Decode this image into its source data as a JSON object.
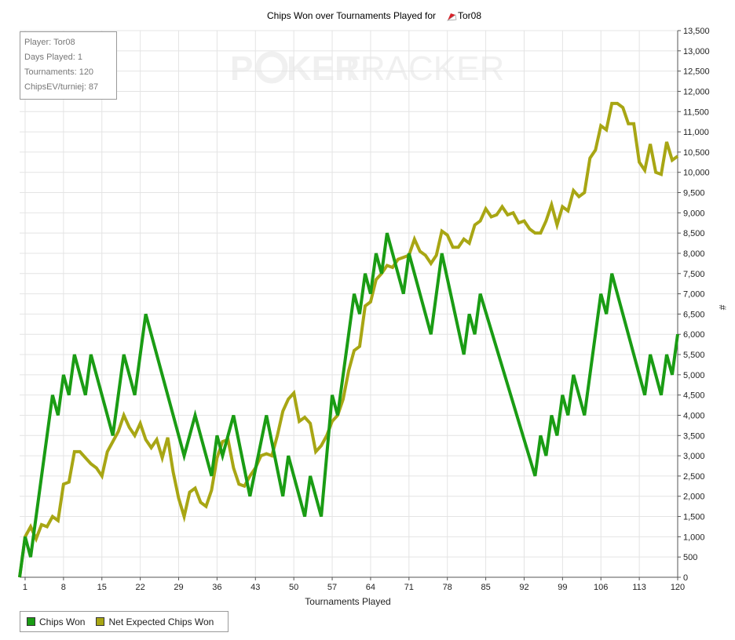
{
  "header": {
    "title_prefix": "Chips Won over Tournaments Played for",
    "player": "Tor08",
    "flag_icon": "pokerstars-icon"
  },
  "watermark": {
    "text_a": "P",
    "text_b": "KER",
    "text_c": "TRACKER"
  },
  "info": {
    "player_line": "Player: Tor08",
    "days_line": "Days Played: 1",
    "tournaments_line": "Tournaments: 120",
    "chipsev_line": "ChipsEV/turniej: 87"
  },
  "colors": {
    "chips_won": "#1a9c14",
    "net_expected": "#a8a614",
    "grid": "#e4e4e4"
  },
  "chart_data": {
    "type": "line",
    "xlabel": "Tournaments Played",
    "ylabel": "#",
    "xlim": [
      0,
      120
    ],
    "ylim": [
      0,
      13500
    ],
    "x_ticks": [
      1,
      8,
      15,
      22,
      29,
      36,
      43,
      50,
      57,
      64,
      71,
      78,
      85,
      92,
      99,
      106,
      113,
      120
    ],
    "y_ticks": [
      "0",
      "500",
      "1,000",
      "1,500",
      "2,000",
      "2,500",
      "3,000",
      "3,500",
      "4,000",
      "4,500",
      "5,000",
      "5,500",
      "6,000",
      "6,500",
      "7,000",
      "7,500",
      "8,000",
      "8,500",
      "9,000",
      "9,500",
      "10,000",
      "10,500",
      "11,000",
      "11,500",
      "12,000",
      "12,500",
      "13,000",
      "13,500"
    ],
    "y_tick_values": [
      0,
      500,
      1000,
      1500,
      2000,
      2500,
      3000,
      3500,
      4000,
      4500,
      5000,
      5500,
      6000,
      6500,
      7000,
      7500,
      8000,
      8500,
      9000,
      9500,
      10000,
      10500,
      11000,
      11500,
      12000,
      12500,
      13000,
      13500
    ],
    "grid": true,
    "legend_position": "bottom-left",
    "series": [
      {
        "name": "Chips Won",
        "x": [
          0,
          1,
          2,
          6,
          7,
          8,
          9,
          10,
          12,
          13,
          17,
          19,
          21,
          23,
          30,
          32,
          35,
          36,
          37,
          39,
          42,
          45,
          48,
          49,
          52,
          53,
          55,
          57,
          58,
          61,
          62,
          63,
          64,
          65,
          66,
          67,
          70,
          71,
          75,
          77,
          81,
          82,
          83,
          84,
          94,
          95,
          96,
          97,
          98,
          99,
          100,
          101,
          103,
          106,
          107,
          108,
          114,
          115,
          117,
          118,
          119,
          120
        ],
        "y": [
          0,
          1000,
          500,
          4500,
          4000,
          5000,
          4500,
          5500,
          4500,
          5500,
          3500,
          5500,
          4500,
          6500,
          3000,
          4000,
          2500,
          3500,
          3000,
          4000,
          2000,
          4000,
          2000,
          3000,
          1500,
          2500,
          1500,
          4500,
          4000,
          7000,
          6500,
          7500,
          7000,
          8000,
          7500,
          8500,
          7000,
          8000,
          6000,
          8000,
          5500,
          6500,
          6000,
          7000,
          2500,
          3500,
          3000,
          4000,
          3500,
          4500,
          4000,
          5000,
          4000,
          7000,
          6500,
          7500,
          4500,
          5500,
          4500,
          5500,
          5000,
          6000
        ]
      },
      {
        "name": "Net Expected Chips Won",
        "x": [
          0,
          1,
          2,
          3,
          4,
          5,
          6,
          7,
          8,
          9,
          10,
          11,
          12,
          13,
          14,
          15,
          16,
          17,
          18,
          19,
          20,
          21,
          22,
          23,
          24,
          25,
          26,
          27,
          28,
          29,
          30,
          31,
          32,
          33,
          34,
          35,
          36,
          37,
          38,
          39,
          40,
          41,
          42,
          43,
          44,
          45,
          46,
          47,
          48,
          49,
          50,
          51,
          52,
          53,
          54,
          55,
          56,
          57,
          58,
          59,
          60,
          61,
          62,
          63,
          64,
          65,
          66,
          67,
          68,
          69,
          70,
          71,
          72,
          73,
          74,
          75,
          76,
          77,
          78,
          79,
          80,
          81,
          82,
          83,
          84,
          85,
          86,
          87,
          88,
          89,
          90,
          91,
          92,
          93,
          94,
          95,
          96,
          97,
          98,
          99,
          100,
          101,
          102,
          103,
          104,
          105,
          106,
          107,
          108,
          109,
          110,
          111,
          112,
          113,
          114,
          115,
          116,
          117,
          118,
          119,
          120
        ],
        "y": [
          0,
          1000,
          1250,
          950,
          1300,
          1250,
          1500,
          1400,
          2300,
          2350,
          3100,
          3100,
          2950,
          2800,
          2700,
          2500,
          3100,
          3350,
          3600,
          4000,
          3700,
          3500,
          3800,
          3400,
          3200,
          3400,
          2950,
          3450,
          2600,
          1950,
          1500,
          2100,
          2200,
          1850,
          1750,
          2150,
          2950,
          3350,
          3400,
          2700,
          2300,
          2250,
          2500,
          2700,
          3000,
          3050,
          3000,
          3500,
          4100,
          4400,
          4550,
          3850,
          3950,
          3800,
          3100,
          3250,
          3500,
          3850,
          4000,
          4400,
          5100,
          5600,
          5700,
          6700,
          6800,
          7350,
          7500,
          7700,
          7650,
          7850,
          7900,
          7950,
          8350,
          8050,
          7950,
          7750,
          7950,
          8550,
          8450,
          8150,
          8150,
          8350,
          8250,
          8700,
          8800,
          9100,
          8900,
          8950,
          9150,
          8950,
          9000,
          8750,
          8800,
          8600,
          8500,
          8500,
          8800,
          9200,
          8700,
          9150,
          9050,
          9550,
          9400,
          9500,
          10350,
          10550,
          11150,
          11050,
          11700,
          11700,
          11600,
          11200,
          11200,
          10250,
          10050,
          10700,
          10000,
          9950,
          10750,
          10300,
          10400
        ]
      }
    ]
  }
}
